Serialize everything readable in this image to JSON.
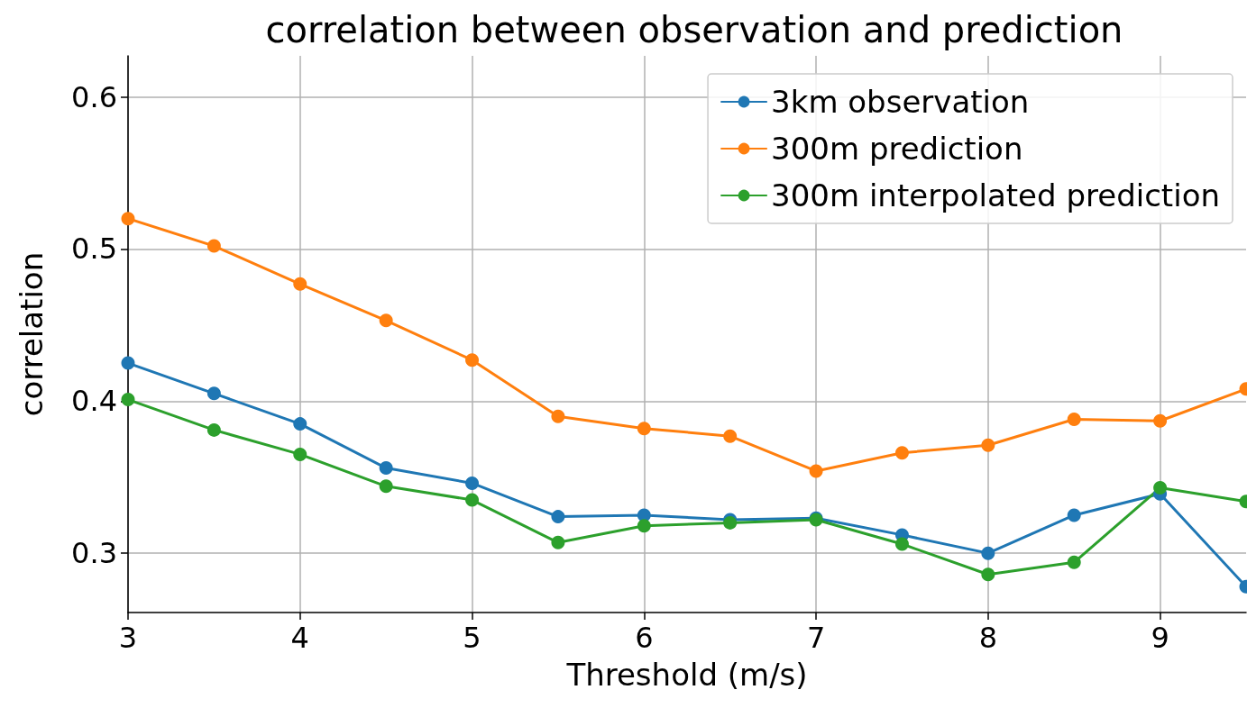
{
  "chart_data": {
    "type": "line",
    "title": "correlation between observation and prediction",
    "xlabel": "Threshold (m/s)",
    "ylabel": "correlation",
    "x": [
      3,
      3.5,
      4,
      4.5,
      5,
      5.5,
      6,
      6.5,
      7,
      7.5,
      8,
      8.5,
      9,
      9.5
    ],
    "series": [
      {
        "name": "3km observation",
        "color": "#1f77b4",
        "values": [
          0.425,
          0.405,
          0.385,
          0.356,
          0.346,
          0.324,
          0.325,
          0.322,
          0.323,
          0.312,
          0.3,
          0.325,
          0.339,
          0.278
        ]
      },
      {
        "name": "300m prediction",
        "color": "#ff7f0e",
        "values": [
          0.52,
          0.502,
          0.477,
          0.453,
          0.427,
          0.39,
          0.382,
          0.377,
          0.354,
          0.366,
          0.371,
          0.388,
          0.387,
          0.408
        ]
      },
      {
        "name": "300m interpolated prediction",
        "color": "#2ca02c",
        "values": [
          0.401,
          0.381,
          0.365,
          0.344,
          0.335,
          0.307,
          0.318,
          0.32,
          0.322,
          0.306,
          0.286,
          0.294,
          0.343,
          0.334
        ]
      }
    ],
    "xlim": [
      3,
      9.5
    ],
    "xticks": [
      3,
      4,
      5,
      6,
      7,
      8,
      9
    ],
    "ylim": [
      0.261,
      0.627
    ],
    "yticks": [
      0.3,
      0.4,
      0.5,
      0.6
    ],
    "grid": true,
    "legend": "top right",
    "marker": "circle",
    "line_style": "solid"
  }
}
